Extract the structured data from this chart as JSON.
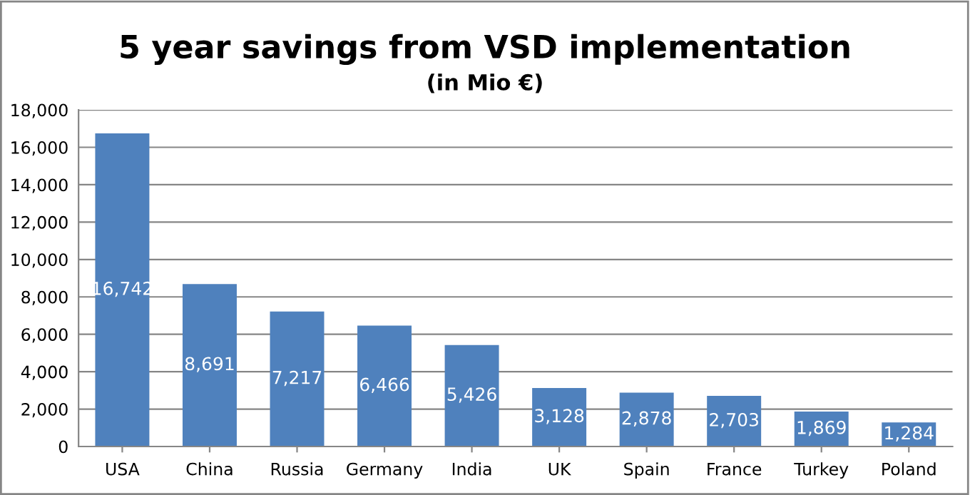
{
  "chart_data": {
    "type": "bar",
    "title": "5 year savings from VSD implementation",
    "subtitle": "(in Mio €)",
    "categories": [
      "USA",
      "China",
      "Russia",
      "Germany",
      "India",
      "UK",
      "Spain",
      "France",
      "Turkey",
      "Poland"
    ],
    "values": [
      16742,
      8691,
      7217,
      6466,
      5426,
      3128,
      2878,
      2703,
      1869,
      1284
    ],
    "value_labels": [
      "16,742",
      "8,691",
      "7,217",
      "6,466",
      "5,426",
      "3,128",
      "2,878",
      "2,703",
      "1,869",
      "1,284"
    ],
    "color": "#4f81bd",
    "ylim": [
      0,
      18000
    ],
    "yticks": [
      {
        "value": 0,
        "label": "0"
      },
      {
        "value": 2000,
        "label": "2,000"
      },
      {
        "value": 4000,
        "label": "4,000"
      },
      {
        "value": 6000,
        "label": "6,000"
      },
      {
        "value": 8000,
        "label": "8,000"
      },
      {
        "value": 10000,
        "label": "10,000"
      },
      {
        "value": 12000,
        "label": "12,000"
      },
      {
        "value": 14000,
        "label": "14,000"
      },
      {
        "value": 16000,
        "label": "16,000"
      },
      {
        "value": 18000,
        "label": "18,000"
      }
    ],
    "grid": "y"
  }
}
